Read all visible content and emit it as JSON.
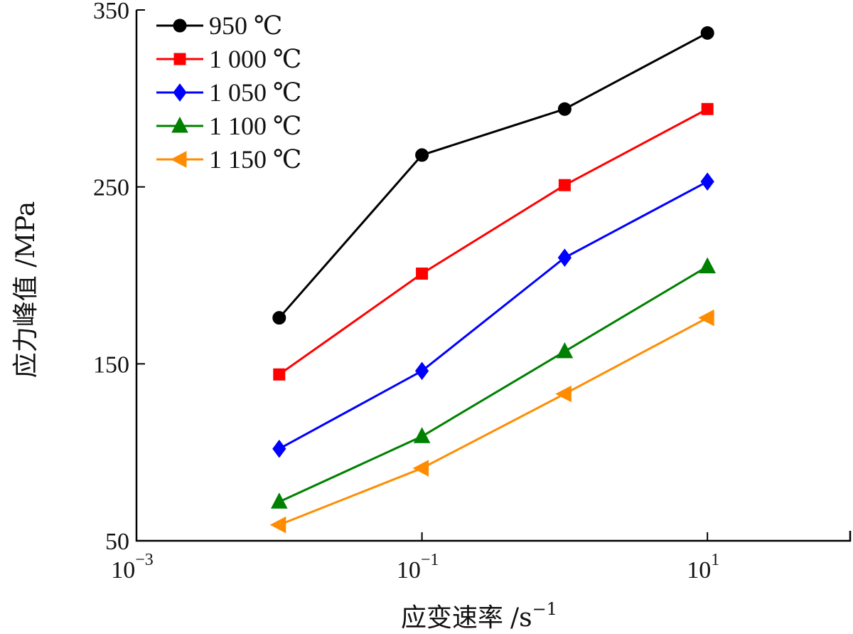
{
  "chart_data": {
    "type": "line",
    "xlabel": "应变速率",
    "xlabel_unit": "/s",
    "xlabel_unit_exp": "−1",
    "ylabel": "应力峰值 /MPa",
    "x_scale": "log",
    "xlim": [
      0.001,
      100
    ],
    "ylim": [
      50,
      350
    ],
    "x_ticks": [
      {
        "value": 0.001,
        "base": "10",
        "exp": "−3"
      },
      {
        "value": 0.1,
        "base": "10",
        "exp": "−1"
      },
      {
        "value": 10,
        "base": "10",
        "exp": "1"
      }
    ],
    "y_ticks": [
      {
        "value": 50,
        "label": "50"
      },
      {
        "value": 150,
        "label": "150"
      },
      {
        "value": 250,
        "label": "250"
      },
      {
        "value": 350,
        "label": "350"
      }
    ],
    "grid": false,
    "legend_position": "top-left",
    "x": [
      0.01,
      0.1,
      1,
      10
    ],
    "series": [
      {
        "name": "950 ℃",
        "color": "#000000",
        "marker": "circle",
        "values": [
          176,
          268,
          294,
          337
        ]
      },
      {
        "name": "1 000 ℃",
        "color": "#ff0000",
        "marker": "square",
        "values": [
          144,
          201,
          251,
          294
        ]
      },
      {
        "name": "1 050 ℃",
        "color": "#0000ff",
        "marker": "diamond",
        "values": [
          102,
          146,
          210,
          253
        ]
      },
      {
        "name": "1 100 ℃",
        "color": "#008000",
        "marker": "triangle-up",
        "values": [
          72,
          109,
          157,
          205
        ]
      },
      {
        "name": "1 150 ℃",
        "color": "#ff8c00",
        "marker": "triangle-left",
        "values": [
          59,
          91,
          133,
          176
        ]
      }
    ]
  }
}
